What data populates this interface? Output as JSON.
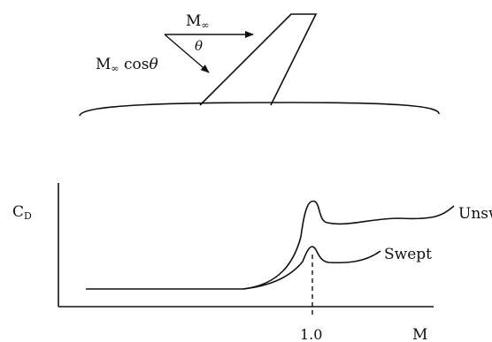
{
  "wing_diagram": {
    "freestream_label": "M",
    "freestream_sub": "∞",
    "normal_label_main": "M",
    "normal_label_sub": "∞",
    "normal_label_tail": " cos",
    "normal_label_theta": "θ",
    "angle_label": "θ"
  },
  "chart_data": {
    "type": "line",
    "title": "",
    "ylabel": "C",
    "ylabel_sub": "D",
    "xlabel": "M",
    "x_ticks": [
      "1.0"
    ],
    "series": [
      {
        "name": "Unswept"
      },
      {
        "name": "Swept"
      }
    ]
  }
}
